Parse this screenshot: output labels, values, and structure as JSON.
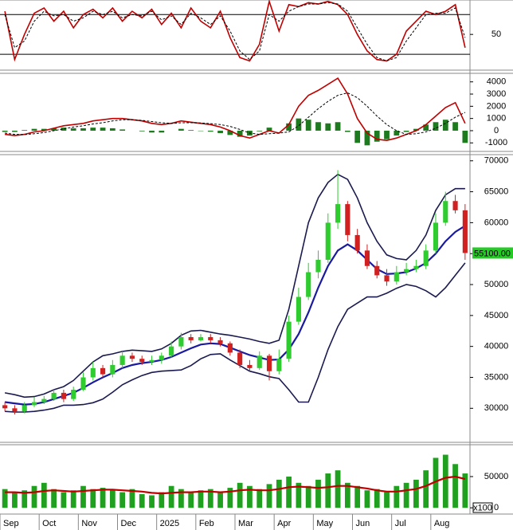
{
  "chart_data": [
    {
      "type": "line",
      "ylim": [
        -4,
        102
      ],
      "yticks": [
        50
      ],
      "levels": [
        20,
        80
      ],
      "series": [
        {
          "color": "#c00000",
          "style": "line",
          "values": [
            85,
            12,
            50,
            82,
            90,
            70,
            85,
            60,
            80,
            88,
            75,
            90,
            70,
            85,
            75,
            88,
            65,
            82,
            60,
            90,
            70,
            60,
            85,
            45,
            15,
            10,
            35,
            100,
            55,
            95,
            92,
            98,
            96,
            100,
            95,
            80,
            50,
            25,
            12,
            10,
            20,
            55,
            70,
            85,
            80,
            85,
            95,
            30
          ]
        },
        {
          "color": "#000000",
          "style": "dashed",
          "values": [
            80,
            30,
            40,
            70,
            85,
            78,
            80,
            70,
            75,
            85,
            80,
            85,
            75,
            80,
            78,
            85,
            72,
            78,
            65,
            82,
            75,
            65,
            78,
            55,
            25,
            12,
            25,
            80,
            70,
            85,
            92,
            96,
            96,
            98,
            96,
            85,
            60,
            35,
            15,
            10,
            15,
            40,
            60,
            80,
            82,
            82,
            90,
            45
          ]
        }
      ]
    },
    {
      "type": "line",
      "ylim": [
        -1700,
        4700
      ],
      "yticks": [
        -1000,
        0,
        1000,
        2000,
        3000,
        4000
      ],
      "series": [
        {
          "color": "#1e7a1e",
          "style": "bar",
          "values": [
            -100,
            -100,
            50,
            150,
            150,
            200,
            250,
            200,
            200,
            250,
            250,
            200,
            100,
            0,
            -50,
            -150,
            -150,
            0,
            150,
            50,
            -30,
            -80,
            -200,
            -350,
            -500,
            -400,
            -50,
            250,
            0,
            600,
            1000,
            900,
            700,
            600,
            700,
            -100,
            -1000,
            -1200,
            -900,
            -700,
            -400,
            -100,
            150,
            500,
            700,
            900,
            700,
            -1000
          ]
        },
        {
          "color": "#c00000",
          "style": "line",
          "values": [
            -300,
            -400,
            -300,
            -100,
            0,
            200,
            400,
            500,
            600,
            800,
            900,
            1000,
            1000,
            900,
            800,
            600,
            500,
            600,
            800,
            700,
            600,
            500,
            300,
            0,
            -400,
            -600,
            -300,
            0,
            -200,
            500,
            2000,
            2900,
            3300,
            3800,
            4300,
            3000,
            1000,
            -200,
            -700,
            -800,
            -600,
            -300,
            0,
            500,
            1200,
            1900,
            2300,
            600
          ]
        },
        {
          "color": "#000000",
          "style": "dashed",
          "values": [
            -200,
            -300,
            -320,
            -250,
            -150,
            0,
            150,
            300,
            400,
            550,
            650,
            800,
            900,
            900,
            850,
            750,
            650,
            600,
            650,
            650,
            630,
            580,
            500,
            350,
            100,
            -200,
            -300,
            -250,
            -200,
            -100,
            400,
            1100,
            1800,
            2400,
            2900,
            3100,
            2700,
            2000,
            1200,
            500,
            0,
            -300,
            -250,
            -100,
            200,
            600,
            1100,
            1500
          ]
        }
      ]
    },
    {
      "type": "candlestick",
      "ylim": [
        24500,
        71000
      ],
      "yticks": [
        30000,
        35000,
        40000,
        45000,
        50000,
        55000,
        60000,
        65000,
        70000
      ],
      "up_color": "#2ecc2e",
      "down_color": "#d02020",
      "open": [
        30500,
        30000,
        29500,
        30500,
        31000,
        31500,
        32500,
        31500,
        33000,
        35000,
        36500,
        35500,
        37000,
        38500,
        38000,
        37500,
        37800,
        38500,
        40000,
        41500,
        41000,
        41500,
        41000,
        40500,
        39000,
        37000,
        36500,
        38500,
        36000,
        38000,
        44000,
        48000,
        52000,
        54000,
        60000,
        63000,
        58000,
        55500,
        53000,
        51500,
        50500,
        52000,
        52500,
        53000,
        55500,
        60000,
        63500,
        62000
      ],
      "high": [
        31000,
        30500,
        31000,
        31800,
        32000,
        33000,
        33000,
        33500,
        35800,
        37500,
        37000,
        37800,
        39200,
        39000,
        38500,
        38500,
        39000,
        40800,
        42200,
        42000,
        42000,
        42000,
        41500,
        40800,
        39500,
        37800,
        39200,
        38800,
        39500,
        45000,
        49500,
        53500,
        55500,
        61500,
        68500,
        63500,
        59000,
        56500,
        53800,
        52500,
        53000,
        53500,
        54000,
        56500,
        61500,
        65000,
        64500,
        63000
      ],
      "low": [
        29500,
        29000,
        29200,
        30200,
        30700,
        31200,
        31000,
        31200,
        32800,
        34500,
        35000,
        35000,
        36500,
        37500,
        37000,
        37000,
        37200,
        38200,
        39500,
        40500,
        40800,
        40500,
        40000,
        38500,
        36500,
        36000,
        36200,
        34500,
        35500,
        37500,
        43500,
        47500,
        51000,
        53500,
        59000,
        57000,
        55000,
        52500,
        51000,
        49800,
        50000,
        51500,
        52000,
        52500,
        55000,
        59500,
        61500,
        54000
      ],
      "close": [
        30000,
        29500,
        30500,
        31000,
        31500,
        32500,
        31500,
        33000,
        35000,
        36500,
        35500,
        37000,
        38500,
        38000,
        37500,
        37800,
        38500,
        40000,
        41500,
        41000,
        41500,
        41000,
        40500,
        39000,
        37000,
        36500,
        38500,
        36000,
        38000,
        44000,
        48000,
        52000,
        54000,
        60000,
        63000,
        58000,
        55500,
        53000,
        51500,
        50500,
        52000,
        52500,
        53000,
        55500,
        60000,
        63500,
        62000,
        55100
      ],
      "series": [
        {
          "color": "#1a1aa0",
          "style": "thick",
          "values": [
            31000,
            30800,
            30600,
            30700,
            31000,
            31500,
            32000,
            32500,
            33300,
            34200,
            35000,
            35700,
            36500,
            37000,
            37300,
            37500,
            37800,
            38300,
            39000,
            39700,
            40300,
            40500,
            40400,
            39800,
            39200,
            38600,
            38200,
            37800,
            37900,
            39500,
            42000,
            45500,
            49500,
            53000,
            55500,
            56500,
            55500,
            54000,
            52500,
            51700,
            51800,
            52000,
            52600,
            53500,
            55000,
            57000,
            58500,
            59500
          ]
        },
        {
          "color": "#1a1a50",
          "style": "line",
          "values": [
            32500,
            32200,
            31800,
            31900,
            32300,
            33000,
            33500,
            34500,
            36000,
            37500,
            38500,
            38800,
            39200,
            39400,
            39300,
            39200,
            39600,
            40500,
            41800,
            42500,
            42600,
            42300,
            42000,
            41800,
            41500,
            41200,
            40800,
            40500,
            41000,
            46000,
            53000,
            60000,
            64000,
            66500,
            67800,
            67000,
            64000,
            60000,
            57000,
            54800,
            54200,
            54000,
            55500,
            58000,
            62000,
            64500,
            65500,
            65500
          ]
        },
        {
          "color": "#1a1a50",
          "style": "line",
          "values": [
            29500,
            29400,
            29400,
            29500,
            29700,
            30000,
            30500,
            30500,
            30600,
            30900,
            31500,
            32600,
            33800,
            34600,
            35300,
            35800,
            36000,
            36100,
            36200,
            36900,
            38000,
            38700,
            38800,
            37800,
            36900,
            36000,
            35600,
            35100,
            34800,
            33000,
            31000,
            31000,
            35000,
            39500,
            43200,
            46000,
            47000,
            48000,
            48000,
            48600,
            49400,
            50000,
            49700,
            49000,
            48000,
            49500,
            51500,
            53500
          ]
        }
      ],
      "last_value": {
        "value": 55100,
        "label": "55100.00"
      }
    },
    {
      "type": "bar",
      "ylim": [
        -10000,
        101000
      ],
      "yticks": [
        0,
        50000
      ],
      "unit": "x100",
      "categories": [
        "Sep",
        null,
        null,
        null,
        "Oct",
        null,
        null,
        null,
        "Nov",
        null,
        null,
        null,
        "Dec",
        null,
        null,
        null,
        "2025",
        null,
        null,
        null,
        "Feb",
        null,
        null,
        null,
        "Mar",
        null,
        null,
        null,
        "Apr",
        null,
        null,
        null,
        "May",
        null,
        null,
        null,
        "Jun",
        null,
        null,
        null,
        "Jul",
        null,
        null,
        null,
        "Aug",
        null,
        null,
        null
      ],
      "series": [
        {
          "color": "#1fa01f",
          "style": "bar",
          "values": [
            30000,
            25000,
            28000,
            35000,
            40000,
            30000,
            25000,
            28000,
            35000,
            30000,
            32000,
            28000,
            25000,
            30000,
            22000,
            20000,
            25000,
            35000,
            30000,
            25000,
            28000,
            30000,
            25000,
            32000,
            40000,
            35000,
            30000,
            38000,
            45000,
            50000,
            40000,
            35000,
            45000,
            55000,
            60000,
            40000,
            35000,
            28000,
            30000,
            25000,
            35000,
            40000,
            45000,
            60000,
            80000,
            85000,
            70000,
            55000
          ]
        },
        {
          "color": "#c00000",
          "style": "thick",
          "values": [
            25000,
            25000,
            24000,
            25000,
            27000,
            28000,
            27000,
            26000,
            27000,
            28000,
            29000,
            29000,
            28000,
            27000,
            26000,
            24000,
            23000,
            24000,
            25000,
            25000,
            26000,
            26000,
            25000,
            26000,
            28000,
            29000,
            28000,
            28000,
            30000,
            33000,
            34000,
            33000,
            32000,
            33000,
            35000,
            35000,
            33000,
            31000,
            28000,
            26000,
            26000,
            28000,
            30000,
            35000,
            42000,
            48000,
            50000,
            46000
          ]
        }
      ]
    }
  ]
}
